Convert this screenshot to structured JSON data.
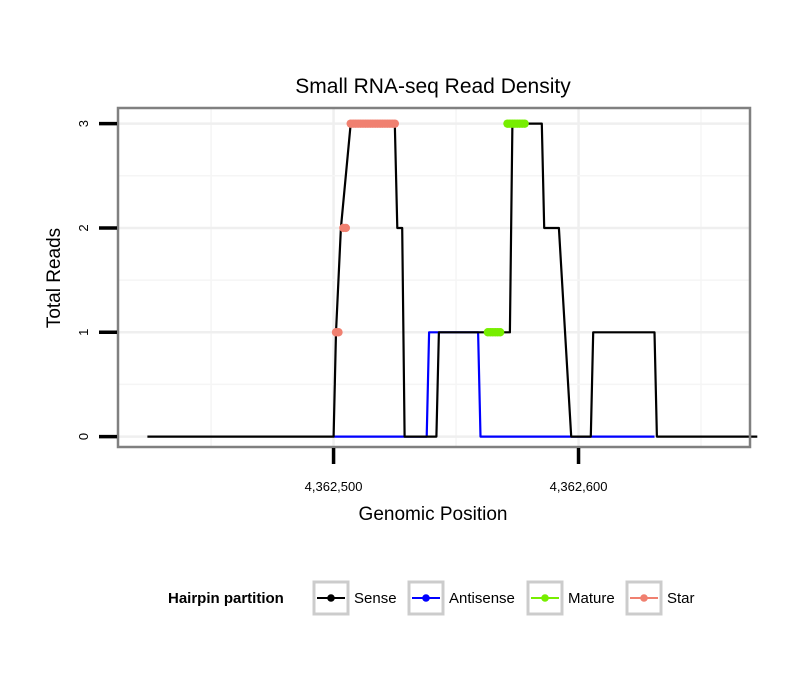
{
  "chart_data": {
    "type": "line",
    "title": "Small RNA-seq Read Density",
    "xlabel": "Genomic Position",
    "ylabel": "Total Reads",
    "xlim": [
      4362412,
      4362670
    ],
    "ylim": [
      -0.1,
      3.15
    ],
    "x_ticks": [
      4362500,
      4362600
    ],
    "x_tick_labels": [
      "4,362,500",
      "4,362,600"
    ],
    "y_ticks": [
      0,
      1,
      2,
      3
    ],
    "y_tick_labels": [
      "0",
      "1",
      "2",
      "3"
    ],
    "grid": true,
    "legend": {
      "title": "Hairpin partition",
      "position": "bottom",
      "entries": [
        "Sense",
        "Antisense",
        "Mature",
        "Star"
      ]
    },
    "series": [
      {
        "name": "Sense",
        "color": "#000000",
        "kind": "line",
        "x": [
          4362424,
          4362500,
          4362501,
          4362503,
          4362507,
          4362525,
          4362526,
          4362528,
          4362529,
          4362537,
          4362541,
          4362542,
          4362543,
          4362547,
          4362572,
          4362573,
          4362574,
          4362579,
          4362585,
          4362586,
          4362591,
          4362592,
          4362597,
          4362605,
          4362606,
          4362631,
          4362632,
          4362673
        ],
        "y": [
          0,
          0,
          1,
          2,
          3,
          3,
          2,
          2,
          0,
          0,
          0,
          0,
          1,
          1,
          1,
          3,
          3,
          3,
          3,
          2,
          2,
          2,
          0,
          0,
          1,
          1,
          0,
          0
        ]
      },
      {
        "name": "Antisense",
        "color": "#0000ff",
        "kind": "line",
        "x": [
          4362500,
          4362538,
          4362539,
          4362559,
          4362560,
          4362631
        ],
        "y": [
          0,
          0,
          1,
          1,
          0,
          0
        ]
      },
      {
        "name": "Mature",
        "color": "#77ee00",
        "kind": "points",
        "x": [
          4362563,
          4362564,
          4362565,
          4362566,
          4362567,
          4362568,
          4362571,
          4362572,
          4362573,
          4362574,
          4362575,
          4362576,
          4362577,
          4362578
        ],
        "y": [
          1,
          1,
          1,
          1,
          1,
          1,
          3,
          3,
          3,
          3,
          3,
          3,
          3,
          3
        ]
      },
      {
        "name": "Star",
        "color": "#f08070",
        "kind": "points",
        "x": [
          4362501,
          4362502,
          4362504,
          4362505,
          4362507,
          4362508,
          4362509,
          4362510,
          4362511,
          4362512,
          4362513,
          4362514,
          4362515,
          4362516,
          4362517,
          4362518,
          4362519,
          4362520,
          4362521,
          4362522,
          4362523,
          4362524,
          4362525
        ],
        "y": [
          1,
          1,
          2,
          2,
          3,
          3,
          3,
          3,
          3,
          3,
          3,
          3,
          3,
          3,
          3,
          3,
          3,
          3,
          3,
          3,
          3,
          3,
          3
        ]
      }
    ]
  }
}
